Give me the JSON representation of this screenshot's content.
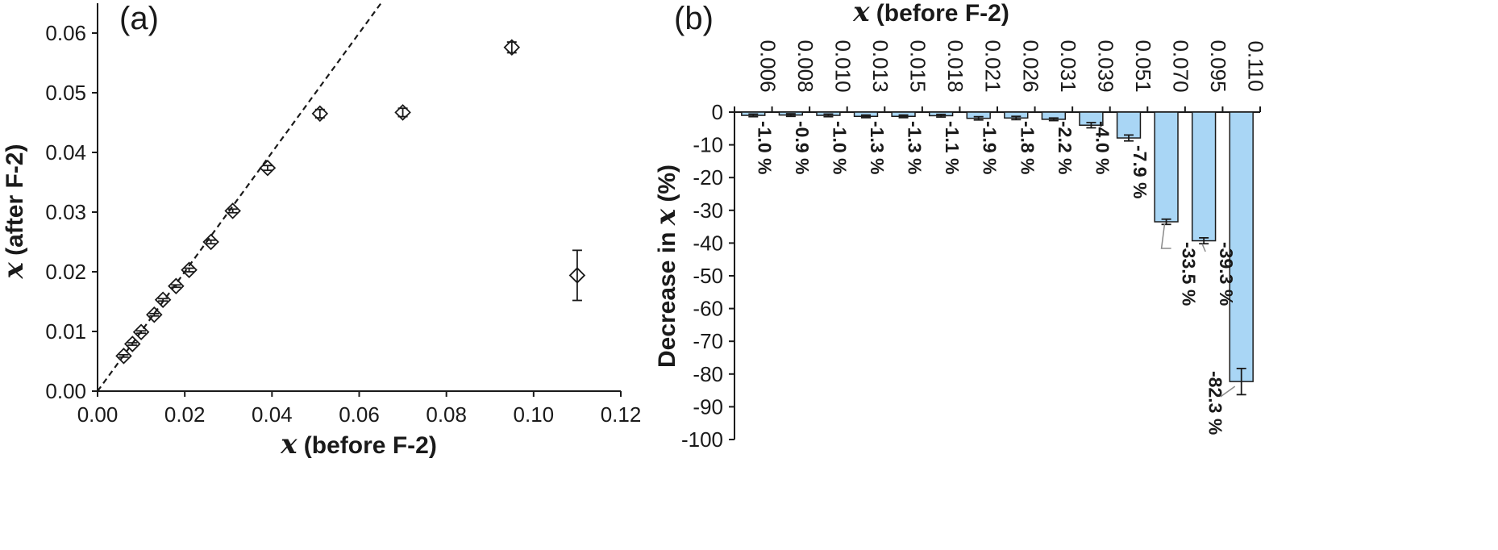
{
  "chart_data": [
    {
      "type": "scatter",
      "panel_label": "(a)",
      "xlabel_var": "x",
      "xlabel_text": " (before F-2)",
      "ylabel_var": "x",
      "ylabel_text": " (after F-2)",
      "xlim": [
        0,
        0.12
      ],
      "ylim": [
        0,
        0.065
      ],
      "xticks": [
        "0.00",
        "0.02",
        "0.04",
        "0.06",
        "0.08",
        "0.10",
        "0.12"
      ],
      "yticks": [
        "0.00",
        "0.01",
        "0.02",
        "0.03",
        "0.04",
        "0.05",
        "0.06"
      ],
      "xtick_values": [
        0,
        0.02,
        0.04,
        0.06,
        0.08,
        0.1,
        0.12
      ],
      "ytick_values": [
        0,
        0.01,
        0.02,
        0.03,
        0.04,
        0.05,
        0.06
      ],
      "marker": "diamond-open",
      "reference_line": "y = x (dashed)",
      "points": [
        {
          "x": 0.006,
          "y": 0.0059,
          "err": 0.0002
        },
        {
          "x": 0.008,
          "y": 0.0079,
          "err": 0.0002
        },
        {
          "x": 0.01,
          "y": 0.0099,
          "err": 0.0002
        },
        {
          "x": 0.013,
          "y": 0.0128,
          "err": 0.0002
        },
        {
          "x": 0.015,
          "y": 0.0153,
          "err": 0.0002
        },
        {
          "x": 0.018,
          "y": 0.0176,
          "err": 0.0002
        },
        {
          "x": 0.021,
          "y": 0.0203,
          "err": 0.0003
        },
        {
          "x": 0.026,
          "y": 0.025,
          "err": 0.0003
        },
        {
          "x": 0.031,
          "y": 0.0302,
          "err": 0.0003
        },
        {
          "x": 0.039,
          "y": 0.0374,
          "err": 0.0004
        },
        {
          "x": 0.051,
          "y": 0.0465,
          "err": 0.0007
        },
        {
          "x": 0.07,
          "y": 0.0467,
          "err": 0.0007
        },
        {
          "x": 0.095,
          "y": 0.0576,
          "err": 0.0009
        },
        {
          "x": 0.11,
          "y": 0.0194,
          "err": 0.0042
        }
      ]
    },
    {
      "type": "bar",
      "panel_label": "(b)",
      "xlabel_var": "x",
      "xlabel_text": " (before F-2)",
      "ylabel_prefix": "Decrease in ",
      "ylabel_var": "x",
      "ylabel_suffix": " (%)",
      "ylim": [
        -100,
        0
      ],
      "yticks": [
        "0",
        "-10",
        "-20",
        "-30",
        "-40",
        "-50",
        "-60",
        "-70",
        "-80",
        "-90",
        "-100"
      ],
      "ytick_values": [
        0,
        -10,
        -20,
        -30,
        -40,
        -50,
        -60,
        -70,
        -80,
        -90,
        -100
      ],
      "bar_color": "#a9d6f5",
      "categories": [
        "0.006",
        "0.008",
        "0.010",
        "0.013",
        "0.015",
        "0.018",
        "0.021",
        "0.026",
        "0.031",
        "0.039",
        "0.051",
        "0.070",
        "0.095",
        "0.110"
      ],
      "values": [
        -1.0,
        -0.9,
        -1.0,
        -1.3,
        -1.3,
        -1.1,
        -1.9,
        -1.8,
        -2.2,
        -4.0,
        -7.9,
        -33.5,
        -39.3,
        -82.3
      ],
      "errors": [
        0.4,
        0.4,
        0.4,
        0.4,
        0.4,
        0.4,
        0.5,
        0.5,
        0.4,
        0.8,
        0.9,
        0.8,
        0.9,
        4.0
      ],
      "data_labels": [
        "-1.0 %",
        "-0.9 %",
        "-1.0 %",
        "-1.3 %",
        "-1.3 %",
        "-1.1 %",
        "-1.9 %",
        "-1.8 %",
        "-2.2 %",
        "-4.0 %",
        "-7.9 %",
        "-33.5 %",
        "-39.3 %",
        "-82.3 %"
      ]
    }
  ]
}
